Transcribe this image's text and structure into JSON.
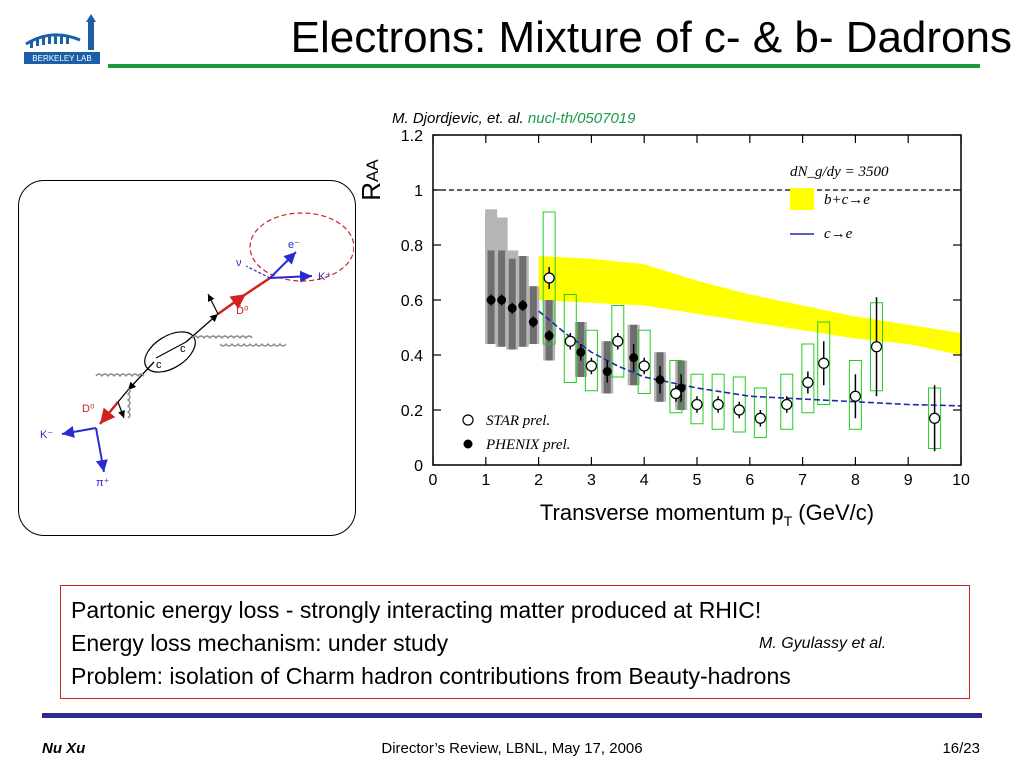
{
  "title": "Electrons: Mixture of c- & b- Dadrons",
  "logo": {
    "text": "BERKELEY LAB",
    "color": "#1a5fa8"
  },
  "reference": {
    "authors": "M. Djordjevic, et. al.",
    "link": "nucl-th/0507019"
  },
  "diagram": {
    "labels": {
      "e": "e⁻",
      "nu": "ν",
      "kplus": "K⁺",
      "d0bar": "D̄⁰",
      "c1": "c",
      "c2": "c",
      "d0": "D⁰",
      "kminus": "K⁻",
      "piplus": "π⁺"
    }
  },
  "chart_data": {
    "type": "scatter",
    "xlabel_main": "Transverse momentum p",
    "xlabel_sub": "T",
    "xlabel_unit": " (GeV/c)",
    "ylabel_main": "R",
    "ylabel_sub": "AA",
    "xlim": [
      0,
      10
    ],
    "ylim": [
      0,
      1.2
    ],
    "x_ticks": [
      "0",
      "1",
      "2",
      "3",
      "4",
      "5",
      "6",
      "7",
      "8",
      "9",
      "10"
    ],
    "y_ticks": [
      "0",
      "0.2",
      "0.4",
      "0.6",
      "0.8",
      "1",
      "1.2"
    ],
    "theory_label": "dN_g/dy = 3500",
    "legend": {
      "band": "b+c→e",
      "line": "c→e",
      "star": "STAR prel.",
      "phenix": "PHENIX prel."
    },
    "reference_line_y": 1.0,
    "band_bc_e": {
      "x": [
        2.0,
        3.0,
        4.0,
        5.0,
        6.0,
        7.0,
        8.0,
        9.0,
        10.0
      ],
      "low": [
        0.6,
        0.59,
        0.58,
        0.55,
        0.52,
        0.49,
        0.46,
        0.44,
        0.4
      ],
      "high": [
        0.76,
        0.75,
        0.73,
        0.67,
        0.62,
        0.58,
        0.54,
        0.51,
        0.48
      ]
    },
    "curve_c_e": {
      "x": [
        2.0,
        2.5,
        3.0,
        3.5,
        4.0,
        5.0,
        6.0,
        7.0,
        8.0,
        9.0,
        10.0
      ],
      "y": [
        0.56,
        0.48,
        0.41,
        0.36,
        0.32,
        0.28,
        0.25,
        0.24,
        0.23,
        0.22,
        0.215
      ]
    },
    "star": [
      {
        "x": 2.2,
        "y": 0.68,
        "err": 0.04,
        "sys": [
          0.44,
          0.92
        ]
      },
      {
        "x": 2.6,
        "y": 0.45,
        "err": 0.03,
        "sys": [
          0.3,
          0.62
        ]
      },
      {
        "x": 3.0,
        "y": 0.36,
        "err": 0.03,
        "sys": [
          0.27,
          0.49
        ]
      },
      {
        "x": 3.5,
        "y": 0.45,
        "err": 0.03,
        "sys": [
          0.32,
          0.58
        ]
      },
      {
        "x": 4.0,
        "y": 0.36,
        "err": 0.03,
        "sys": [
          0.26,
          0.49
        ]
      },
      {
        "x": 4.6,
        "y": 0.26,
        "err": 0.03,
        "sys": [
          0.19,
          0.38
        ]
      },
      {
        "x": 5.0,
        "y": 0.22,
        "err": 0.03,
        "sys": [
          0.15,
          0.33
        ]
      },
      {
        "x": 5.4,
        "y": 0.22,
        "err": 0.03,
        "sys": [
          0.13,
          0.33
        ]
      },
      {
        "x": 5.8,
        "y": 0.2,
        "err": 0.03,
        "sys": [
          0.12,
          0.32
        ]
      },
      {
        "x": 6.2,
        "y": 0.17,
        "err": 0.03,
        "sys": [
          0.1,
          0.28
        ]
      },
      {
        "x": 6.7,
        "y": 0.22,
        "err": 0.03,
        "sys": [
          0.13,
          0.33
        ]
      },
      {
        "x": 7.1,
        "y": 0.3,
        "err": 0.04,
        "sys": [
          0.19,
          0.44
        ]
      },
      {
        "x": 7.4,
        "y": 0.37,
        "err": 0.08,
        "sys": [
          0.22,
          0.52
        ]
      },
      {
        "x": 8.0,
        "y": 0.25,
        "err": 0.08,
        "sys": [
          0.13,
          0.38
        ]
      },
      {
        "x": 8.4,
        "y": 0.43,
        "err": 0.18,
        "sys": [
          0.27,
          0.59
        ]
      },
      {
        "x": 9.5,
        "y": 0.17,
        "err": 0.12,
        "sys": [
          0.06,
          0.28
        ]
      }
    ],
    "phenix": [
      {
        "x": 1.1,
        "y": 0.6,
        "err": 0.02,
        "sys": [
          0.44,
          0.93
        ]
      },
      {
        "x": 1.3,
        "y": 0.6,
        "err": 0.02,
        "sys": [
          0.43,
          0.9
        ]
      },
      {
        "x": 1.5,
        "y": 0.57,
        "err": 0.02,
        "sys": [
          0.42,
          0.78
        ]
      },
      {
        "x": 1.7,
        "y": 0.58,
        "err": 0.02,
        "sys": [
          0.43,
          0.76
        ]
      },
      {
        "x": 1.9,
        "y": 0.52,
        "err": 0.02,
        "sys": [
          0.44,
          0.65
        ]
      },
      {
        "x": 2.2,
        "y": 0.47,
        "err": 0.02,
        "sys": [
          0.38,
          0.6
        ]
      },
      {
        "x": 2.8,
        "y": 0.41,
        "err": 0.03,
        "sys": [
          0.32,
          0.52
        ]
      },
      {
        "x": 3.3,
        "y": 0.34,
        "err": 0.04,
        "sys": [
          0.26,
          0.45
        ]
      },
      {
        "x": 3.8,
        "y": 0.39,
        "err": 0.05,
        "sys": [
          0.29,
          0.51
        ]
      },
      {
        "x": 4.3,
        "y": 0.31,
        "err": 0.05,
        "sys": [
          0.23,
          0.41
        ]
      },
      {
        "x": 4.7,
        "y": 0.28,
        "err": 0.05,
        "sys": [
          0.2,
          0.38
        ]
      }
    ]
  },
  "text_box": {
    "line1": "Partonic energy loss - strongly interacting matter produced at RHIC!",
    "line2": "Energy loss mechanism: under study",
    "line2_ref": "M. Gyulassy et al.",
    "line3": "Problem: isolation of Charm hadron contributions from Beauty-hadrons"
  },
  "footer": {
    "author": "Nu Xu",
    "event": "Director’s Review, LBNL, May 17,  2006",
    "page": "16/23"
  }
}
